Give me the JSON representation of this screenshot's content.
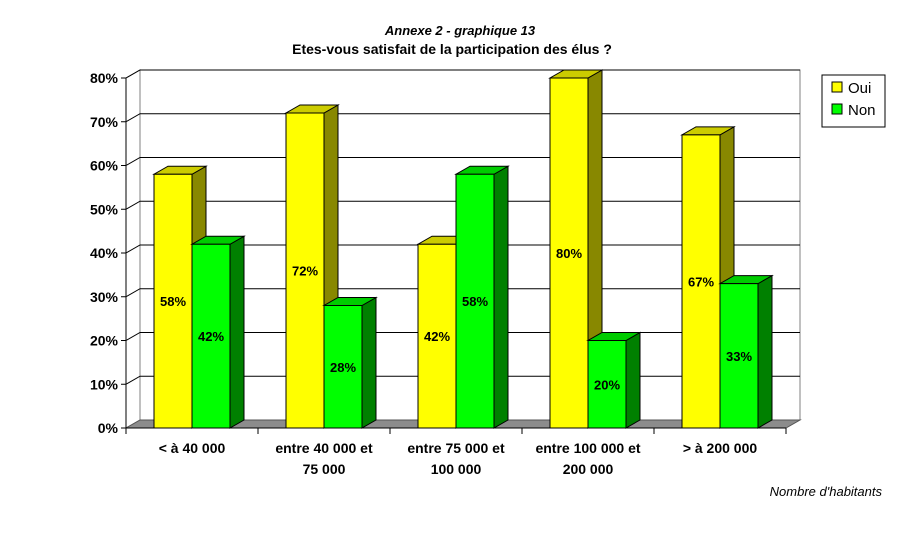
{
  "chart_data": {
    "type": "bar",
    "title_line1": "Annexe 2 - graphique 13",
    "title_line2": "Etes-vous satisfait de la participation des élus ?",
    "xlabel": "Nombre d'habitants",
    "ylabel": "",
    "categories": [
      [
        "< à 40 000"
      ],
      [
        "entre 40 000 et",
        "75 000"
      ],
      [
        "entre 75 000 et",
        "100 000"
      ],
      [
        "entre 100 000 et",
        "200 000"
      ],
      [
        "> à 200 000"
      ]
    ],
    "series": [
      {
        "name": "Oui",
        "values": [
          58,
          72,
          42,
          80,
          67
        ],
        "labels": [
          "58%",
          "72%",
          "42%",
          "80%",
          "67%"
        ]
      },
      {
        "name": "Non",
        "values": [
          42,
          28,
          58,
          20,
          33
        ],
        "labels": [
          "42%",
          "28%",
          "58%",
          "20%",
          "33%"
        ]
      }
    ],
    "ylim": [
      0,
      80
    ],
    "yticks": [
      "0%",
      "10%",
      "20%",
      "30%",
      "40%",
      "50%",
      "60%",
      "70%",
      "80%"
    ],
    "grid": true,
    "legend_position": "right",
    "colors": {
      "Oui": {
        "front": "#ffff00",
        "side": "#888800",
        "top": "#cccc00"
      },
      "Non": {
        "front": "#00ff00",
        "side": "#008000",
        "top": "#00cc00"
      },
      "floor": "#8c8c8c"
    }
  }
}
